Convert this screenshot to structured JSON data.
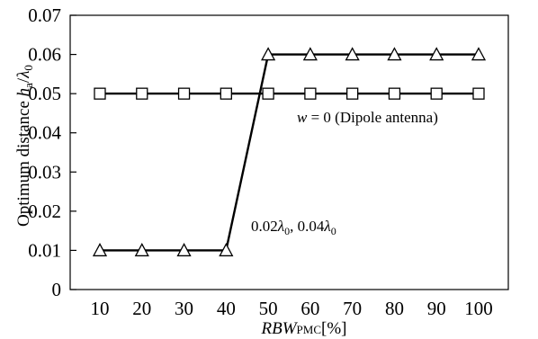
{
  "chart_data": {
    "type": "line",
    "x": [
      10,
      20,
      30,
      40,
      50,
      60,
      70,
      80,
      90,
      100
    ],
    "xlim": [
      10,
      100
    ],
    "ylim": [
      0,
      0.07
    ],
    "xticks": [
      "10",
      "20",
      "30",
      "40",
      "50",
      "60",
      "70",
      "80",
      "90",
      "100"
    ],
    "yticks": [
      "0",
      "0.01",
      "0.02",
      "0.03",
      "0.04",
      "0.05",
      "0.06",
      "0.07"
    ],
    "xlabel": {
      "main": "RBW",
      "sub": "PMC",
      "unit": "[%]"
    },
    "ylabel": {
      "prefix": "Optimum distance ",
      "h": "h",
      "h_sub": "a",
      "slash": "/",
      "lambda": "λ",
      "lambda_sub": "0"
    },
    "grid": false,
    "series": [
      {
        "marker": "square",
        "values": [
          0.05,
          0.05,
          0.05,
          0.05,
          0.05,
          0.05,
          0.05,
          0.05,
          0.05,
          0.05
        ]
      },
      {
        "marker": "triangle",
        "values": [
          0.01,
          0.01,
          0.01,
          0.01,
          0.06,
          0.06,
          0.06,
          0.06,
          0.06,
          0.06
        ]
      }
    ],
    "annotations": {
      "square_series": {
        "w": "w",
        "rest": " = 0 (Dipole antenna)"
      },
      "triangle_series": {
        "a": "0.02",
        "lambda1": "λ",
        "sub1": "0",
        "sep": ", 0.04",
        "lambda2": "λ",
        "sub2": "0"
      }
    },
    "colors": {
      "line": "#000000",
      "marker_fill": "#ffffff",
      "background": "#ffffff"
    }
  }
}
